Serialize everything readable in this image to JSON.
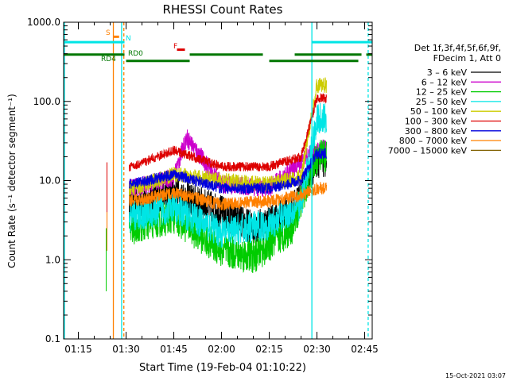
{
  "chart_data": {
    "type": "line",
    "title": "RHESSI Count Rates",
    "xlabel": "Start Time (19-Feb-04 01:10:22)",
    "ylabel": "Count Rate (s⁻¹ detector segment⁻¹)",
    "y_scale": "log",
    "ylim": [
      0.1,
      1000
    ],
    "xlim_minutes_after_01_10_22": [
      0,
      97
    ],
    "y_ticks": [
      "1000.0",
      "100.0",
      "10.0",
      "1.0",
      "0.1"
    ],
    "x_ticks": [
      "01:15",
      "01:30",
      "01:45",
      "02:00",
      "02:15",
      "02:30",
      "02:45"
    ],
    "legend_title_1": "Det 1f,3f,4f,5f,6f,9f,",
    "legend_title_2": "FDecim 1, Att 0",
    "legend_position": "right",
    "timestamp": "15-Oct-2021 03:07",
    "series": [
      {
        "name": "3 – 6 keV",
        "color": "#000000",
        "values_at": {
          "01:32": 5,
          "01:45": 7,
          "02:00": 4,
          "02:10": 2.5,
          "02:22": 4,
          "02:30": 18
        }
      },
      {
        "name": "6 – 12 keV",
        "color": "#cc00cc",
        "values_at": {
          "01:32": 8,
          "01:45": 11,
          "01:49": 35,
          "02:00": 9,
          "02:15": 8,
          "02:30": 25
        }
      },
      {
        "name": "12 – 25 keV",
        "color": "#00cc00",
        "values_at": {
          "01:32": 2.5,
          "01:45": 3.5,
          "02:00": 1.3,
          "02:10": 1.1,
          "02:22": 2.5,
          "02:30": 20
        }
      },
      {
        "name": "25 – 50 keV",
        "color": "#00e5e5",
        "values_at": {
          "01:32": 3.5,
          "01:45": 4.5,
          "02:00": 2.2,
          "02:15": 2.8,
          "02:25": 5,
          "02:30": 60
        }
      },
      {
        "name": "50 – 100 keV",
        "color": "#cccc00",
        "values_at": {
          "01:32": 8,
          "01:45": 12,
          "02:00": 10,
          "02:15": 9,
          "02:25": 11,
          "02:30": 160
        }
      },
      {
        "name": "100 – 300 keV",
        "color": "#dd0000",
        "values_at": {
          "01:32": 15,
          "01:45": 24,
          "02:00": 15,
          "02:15": 15,
          "02:25": 20,
          "02:30": 110
        }
      },
      {
        "name": "300 – 800 keV",
        "color": "#0000dd",
        "values_at": {
          "01:32": 9,
          "01:45": 12,
          "02:00": 8,
          "02:15": 8,
          "02:25": 10,
          "02:30": 22
        }
      },
      {
        "name": "800 – 7000 keV",
        "color": "#ff8000",
        "values_at": {
          "01:32": 5.5,
          "01:45": 7,
          "02:00": 5,
          "02:15": 5.5,
          "02:25": 6.5,
          "02:30": 8
        }
      },
      {
        "name": "7000 – 15000 keV",
        "color": "#806000",
        "values_at": {}
      }
    ],
    "flags": [
      {
        "name": "S",
        "color": "#ff8000"
      },
      {
        "name": "N",
        "color": "#00e5e5"
      },
      {
        "name": "RD0",
        "color": "#007700"
      },
      {
        "name": "RD4",
        "color": "#007700"
      },
      {
        "name": "F",
        "color": "#dd0000"
      }
    ]
  }
}
